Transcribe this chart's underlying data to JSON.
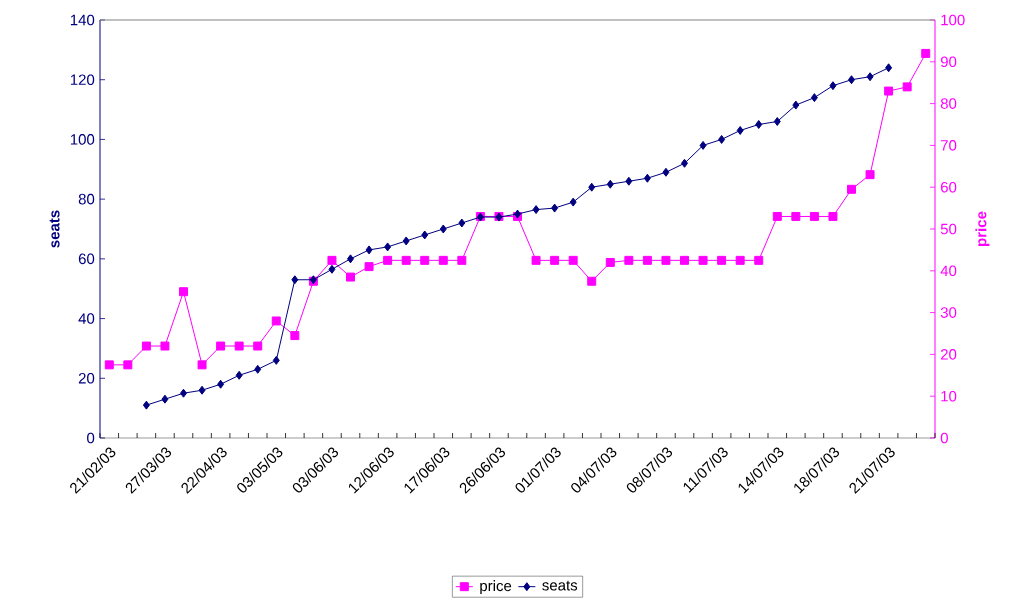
{
  "chart_data": {
    "type": "line",
    "categories": [
      "21/02/03",
      null,
      null,
      "27/03/03",
      null,
      null,
      "22/04/03",
      null,
      null,
      "03/05/03",
      null,
      null,
      "03/06/03",
      null,
      null,
      "12/06/03",
      null,
      null,
      "17/06/03",
      null,
      null,
      "26/06/03",
      null,
      null,
      "01/07/03",
      null,
      null,
      "04/07/03",
      null,
      null,
      "08/07/03",
      null,
      null,
      "11/07/03",
      null,
      null,
      "14/07/03",
      null,
      null,
      "18/07/03",
      null,
      null,
      "21/07/03",
      null,
      null
    ],
    "series": [
      {
        "name": "price",
        "color": "#ff00ff",
        "axis": "y2",
        "marker": "square",
        "values": [
          17.5,
          17.5,
          22,
          22,
          35,
          17.5,
          22,
          22,
          22,
          28,
          24.5,
          37.5,
          42.5,
          38.5,
          41,
          42.5,
          42.5,
          42.5,
          42.5,
          42.5,
          53,
          53,
          53,
          42.5,
          42.5,
          42.5,
          37.5,
          42,
          42.5,
          42.5,
          42.5,
          42.5,
          42.5,
          42.5,
          42.5,
          42.5,
          53,
          53,
          53,
          53,
          59.5,
          63,
          83,
          84,
          92
        ]
      },
      {
        "name": "seats",
        "color": "#000080",
        "marker": "diamond",
        "values": [
          null,
          null,
          11,
          13,
          15,
          16,
          18,
          21,
          23,
          26,
          53,
          53,
          56.5,
          60,
          63,
          64,
          66,
          68,
          70,
          72,
          74,
          74,
          75,
          76.5,
          77,
          79,
          84,
          85,
          86,
          87,
          89,
          92,
          98,
          100,
          103,
          105,
          106,
          111.5,
          114,
          118,
          120,
          121,
          124,
          null,
          null
        ]
      }
    ],
    "ylabel": "seats",
    "y2label": "price",
    "ylim": [
      0,
      140
    ],
    "yticks": [
      0,
      20,
      40,
      60,
      80,
      100,
      120,
      140
    ],
    "y2lim": [
      0,
      100
    ],
    "y2ticks": [
      0,
      10,
      20,
      30,
      40,
      50,
      60,
      70,
      80,
      90,
      100
    ],
    "grid": false,
    "legend": "bottom",
    "line_style": "solid"
  }
}
